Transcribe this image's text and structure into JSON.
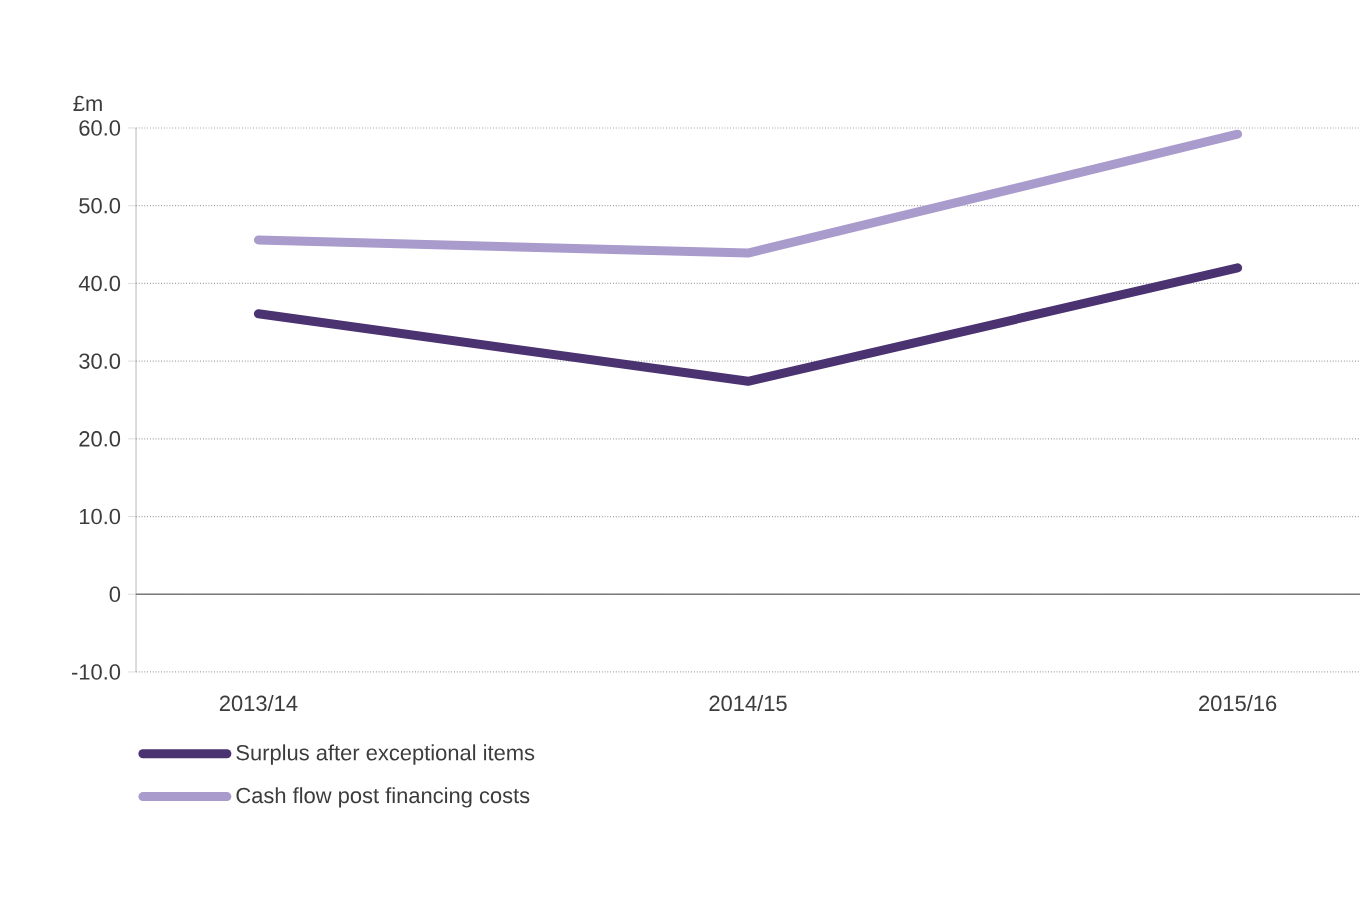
{
  "chart_data": {
    "type": "line",
    "ylabel": "£m",
    "categories": [
      "2013/14",
      "2014/15",
      "2015/16"
    ],
    "series": [
      {
        "name": "Surplus after exceptional items",
        "color": "#4b3270",
        "values": [
          36.1,
          27.4,
          42.0
        ]
      },
      {
        "name": "Cash flow post financing costs",
        "color": "#a99bcb",
        "values": [
          45.6,
          43.9,
          59.2
        ]
      }
    ],
    "ylim": [
      -10,
      60
    ],
    "yticks": [
      {
        "value": -10,
        "label": "-10.0"
      },
      {
        "value": 0,
        "label": "0"
      },
      {
        "value": 10,
        "label": "10.0"
      },
      {
        "value": 20,
        "label": "20.0"
      },
      {
        "value": 30,
        "label": "30.0"
      },
      {
        "value": 40,
        "label": "40.0"
      },
      {
        "value": 50,
        "label": "50.0"
      },
      {
        "value": 60,
        "label": "60.0"
      }
    ],
    "grid": "y",
    "legend": "bottom left",
    "marker": "none",
    "line_style": "solid",
    "ref_lines": [
      {
        "axis": "y",
        "value": 0,
        "color": "#7a7a7a"
      }
    ]
  }
}
